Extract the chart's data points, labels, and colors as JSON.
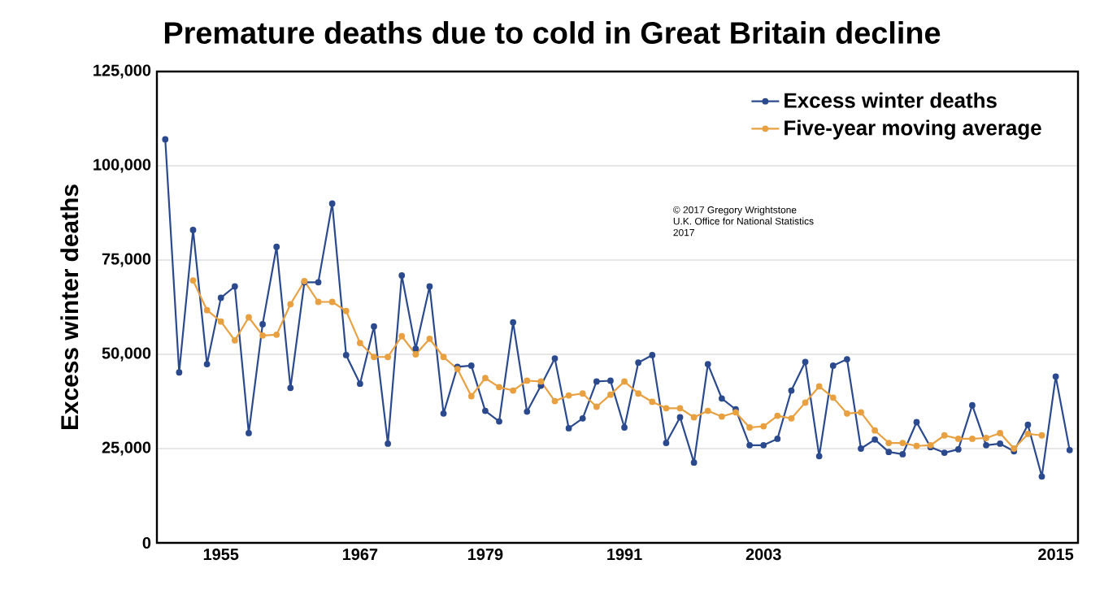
{
  "chart_data": {
    "type": "line",
    "title": "Premature deaths due to cold in Great Britain decline",
    "ylabel": "Excess winter deaths",
    "categories": [
      null,
      null,
      null,
      null,
      "1955",
      null,
      null,
      null,
      null,
      null,
      null,
      null,
      null,
      null,
      "1967",
      null,
      null,
      null,
      null,
      null,
      null,
      null,
      null,
      "1979",
      null,
      null,
      null,
      null,
      null,
      null,
      null,
      null,
      null,
      "1991",
      null,
      null,
      null,
      null,
      null,
      null,
      null,
      null,
      null,
      "2003",
      null,
      null,
      null,
      null,
      null,
      null,
      null,
      null,
      null,
      null,
      null,
      null,
      null,
      null,
      null,
      null,
      null,
      null,
      null,
      null,
      "2015",
      null
    ],
    "series": [
      {
        "name": "Excess winter deaths",
        "color": "#2b4a8e",
        "values": [
          107000,
          45200,
          83000,
          47400,
          65000,
          68000,
          29100,
          58000,
          78500,
          41100,
          69100,
          69100,
          90000,
          49800,
          42200,
          57400,
          26300,
          70900,
          51500,
          68000,
          34300,
          46700,
          47000,
          35000,
          32200,
          58500,
          34800,
          41700,
          48900,
          30400,
          33000,
          42800,
          43000,
          30600,
          47800,
          49800,
          26500,
          33300,
          21300,
          47400,
          38300,
          35400,
          25900,
          25900,
          27600,
          40400,
          48000,
          23000,
          47000,
          48700,
          25000,
          27400,
          24100,
          23500,
          32000,
          25400,
          23900,
          24800,
          36500,
          25900,
          26300,
          24300,
          31300,
          17600,
          44100,
          24600
        ]
      },
      {
        "name": "Five-year moving average",
        "color": "#e8a040",
        "values": [
          null,
          null,
          69600,
          61700,
          58700,
          53700,
          59800,
          55000,
          55200,
          63300,
          69400,
          63900,
          63900,
          61500,
          53000,
          49300,
          49300,
          54800,
          50000,
          54100,
          49300,
          46100,
          38900,
          43700,
          41300,
          40400,
          43000,
          42800,
          37600,
          39100,
          39600,
          36100,
          39300,
          42800,
          39600,
          37400,
          35700,
          35700,
          33300,
          35000,
          33500,
          34600,
          30600,
          30900,
          33700,
          33000,
          37200,
          41500,
          38500,
          34300,
          34600,
          29800,
          26500,
          26500,
          25700,
          25900,
          28500,
          27600,
          27600,
          27800,
          29100,
          25000,
          28900,
          28500,
          null,
          null
        ]
      }
    ],
    "ylim": [
      0,
      125000
    ],
    "yticks": [
      {
        "value": 0,
        "label": "0"
      },
      {
        "value": 25000,
        "label": "25,000"
      },
      {
        "value": 50000,
        "label": "50,000"
      },
      {
        "value": 75000,
        "label": "75,000"
      },
      {
        "value": 100000,
        "label": "100,000"
      },
      {
        "value": 125000,
        "label": "125,000"
      }
    ],
    "grid": "y",
    "legend": "top right",
    "marker": "circle",
    "line_style": "solid",
    "annotations": [
      "© 2017 Gregory Wrightstone",
      "U.K. Office for National Statistics",
      "2017"
    ]
  }
}
